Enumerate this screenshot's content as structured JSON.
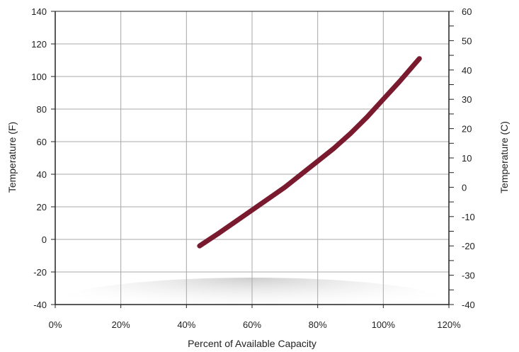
{
  "chart_data": {
    "type": "line",
    "title": "",
    "xlabel": "Percent of Available Capacity",
    "ylabel": "Temperature (F)",
    "y2label": "Temperature (C)",
    "xlim": [
      0,
      120
    ],
    "ylim": [
      -40,
      140
    ],
    "y2lim": [
      -40,
      60
    ],
    "x_ticks": [
      "0%",
      "20%",
      "40%",
      "60%",
      "80%",
      "100%",
      "120%"
    ],
    "y_ticks": [
      "140",
      "120",
      "100",
      "80",
      "60",
      "40",
      "20",
      "0",
      "-20",
      "-40"
    ],
    "y2_ticks": [
      "60",
      "50",
      "40",
      "30",
      "20",
      "10",
      "0",
      "-10",
      "-20",
      "-30",
      "-40"
    ],
    "grid": true,
    "colors": {
      "series": "#7a1a2e",
      "grid": "#a8a8a8",
      "axis": "#222222"
    },
    "series": [
      {
        "name": "",
        "x": [
          44,
          50,
          55,
          60,
          65,
          70,
          75,
          80,
          85,
          90,
          95,
          100,
          105,
          111
        ],
        "y": [
          -4,
          4,
          11,
          18,
          25,
          32,
          40,
          48,
          56,
          65,
          75,
          86,
          97,
          111
        ]
      }
    ]
  }
}
